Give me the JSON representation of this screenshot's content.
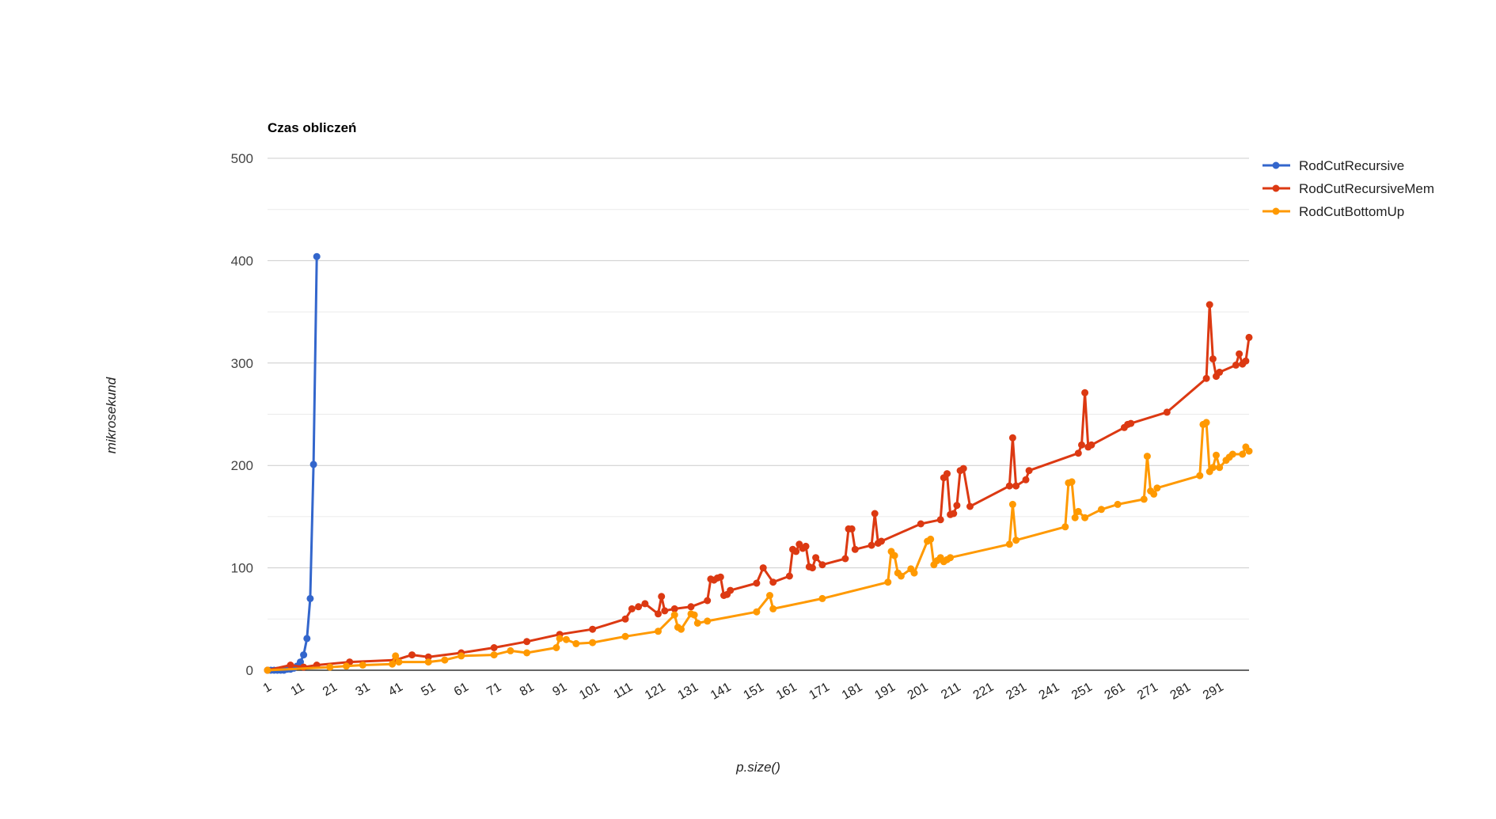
{
  "chart_data": {
    "type": "line",
    "title": "Czas obliczeń",
    "xlabel": "p.size()",
    "ylabel": "mikrosekund",
    "xlim": [
      1,
      300
    ],
    "ylim": [
      0,
      500
    ],
    "yticks": [
      0,
      100,
      200,
      300,
      400,
      500
    ],
    "xticks": [
      1,
      11,
      21,
      31,
      41,
      51,
      61,
      71,
      81,
      91,
      101,
      111,
      121,
      131,
      141,
      151,
      161,
      171,
      181,
      191,
      201,
      211,
      221,
      231,
      241,
      251,
      261,
      271,
      281,
      291
    ],
    "grid": true,
    "legend_position": "right",
    "series": [
      {
        "name": "RodCutRecursive",
        "color": "#3366cc",
        "x": [
          1,
          2,
          3,
          4,
          5,
          6,
          7,
          8,
          9,
          10,
          11,
          12,
          13,
          14,
          15,
          16
        ],
        "y": [
          0,
          0,
          0,
          0,
          0,
          0,
          1,
          1,
          2,
          4,
          8,
          15,
          31,
          70,
          201,
          404
        ]
      },
      {
        "name": "RodCutRecursiveMem",
        "color": "#dc3912",
        "x": [
          1,
          8,
          12,
          16,
          26,
          40,
          45,
          50,
          60,
          70,
          80,
          90,
          100,
          110,
          112,
          114,
          116,
          120,
          121,
          122,
          125,
          130,
          135,
          136,
          137,
          138,
          139,
          140,
          141,
          142,
          150,
          152,
          155,
          160,
          161,
          162,
          163,
          164,
          165,
          166,
          167,
          168,
          170,
          177,
          178,
          179,
          180,
          185,
          186,
          187,
          188,
          200,
          206,
          207,
          208,
          209,
          210,
          211,
          212,
          213,
          215,
          227,
          228,
          229,
          232,
          233,
          248,
          249,
          250,
          251,
          252,
          262,
          263,
          264,
          275,
          287,
          288,
          289,
          290,
          291,
          296,
          297,
          298,
          299,
          300
        ],
        "y": [
          0,
          5,
          3,
          5,
          8,
          10,
          15,
          13,
          17,
          22,
          28,
          35,
          40,
          50,
          60,
          62,
          65,
          55,
          72,
          58,
          60,
          62,
          68,
          89,
          88,
          90,
          91,
          73,
          74,
          78,
          85,
          100,
          86,
          92,
          118,
          116,
          123,
          119,
          121,
          101,
          100,
          110,
          103,
          109,
          138,
          138,
          118,
          122,
          153,
          124,
          126,
          143,
          147,
          188,
          192,
          152,
          153,
          161,
          195,
          197,
          160,
          180,
          227,
          180,
          186,
          195,
          212,
          220,
          271,
          218,
          220,
          237,
          240,
          241,
          252,
          285,
          357,
          304,
          287,
          291,
          298,
          309,
          299,
          302,
          325
        ]
      },
      {
        "name": "RodCutBottomUp",
        "color": "#ff9900",
        "x": [
          1,
          20,
          25,
          30,
          39,
          40,
          41,
          50,
          55,
          60,
          70,
          75,
          80,
          89,
          90,
          92,
          95,
          100,
          110,
          120,
          125,
          126,
          127,
          130,
          131,
          132,
          135,
          150,
          154,
          155,
          170,
          190,
          191,
          192,
          193,
          194,
          197,
          198,
          202,
          203,
          204,
          205,
          206,
          207,
          208,
          209,
          227,
          228,
          229,
          244,
          245,
          246,
          247,
          248,
          250,
          255,
          260,
          268,
          269,
          270,
          271,
          272,
          285,
          286,
          287,
          288,
          289,
          290,
          291,
          293,
          294,
          295,
          298,
          299,
          300
        ],
        "y": [
          0,
          3,
          4,
          5,
          6,
          14,
          8,
          8,
          10,
          14,
          15,
          19,
          17,
          22,
          31,
          30,
          26,
          27,
          33,
          38,
          54,
          42,
          40,
          55,
          54,
          46,
          48,
          57,
          73,
          60,
          70,
          86,
          116,
          112,
          95,
          92,
          99,
          95,
          126,
          128,
          103,
          107,
          110,
          106,
          108,
          110,
          123,
          162,
          127,
          140,
          183,
          184,
          149,
          155,
          149,
          157,
          162,
          167,
          209,
          175,
          172,
          178,
          190,
          240,
          242,
          194,
          198,
          210,
          198,
          205,
          208,
          211,
          211,
          218,
          214
        ]
      }
    ]
  }
}
